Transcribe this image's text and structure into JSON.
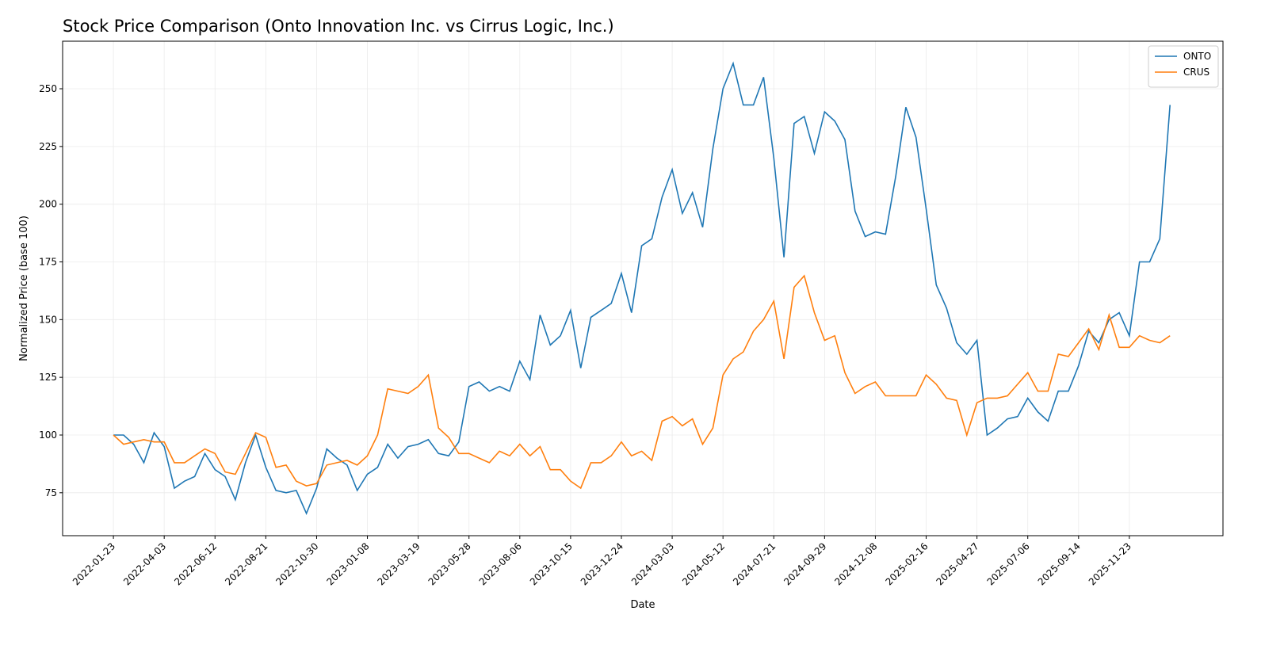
{
  "chart_data": {
    "type": "line",
    "title": "Stock Price Comparison (Onto Innovation Inc. vs Cirrus Logic, Inc.)",
    "x_label": "Date",
    "y_label": "Normalized Price (base 100)",
    "x": [
      "2022-01-23",
      "2022-02-06",
      "2022-02-20",
      "2022-03-06",
      "2022-03-20",
      "2022-04-03",
      "2022-04-17",
      "2022-05-01",
      "2022-05-15",
      "2022-05-29",
      "2022-06-12",
      "2022-06-26",
      "2022-07-10",
      "2022-07-24",
      "2022-08-07",
      "2022-08-21",
      "2022-09-04",
      "2022-09-18",
      "2022-10-02",
      "2022-10-16",
      "2022-10-30",
      "2022-11-13",
      "2022-11-27",
      "2022-12-11",
      "2022-12-25",
      "2023-01-08",
      "2023-01-22",
      "2023-02-05",
      "2023-02-19",
      "2023-03-05",
      "2023-03-19",
      "2023-04-02",
      "2023-04-16",
      "2023-04-30",
      "2023-05-14",
      "2023-05-28",
      "2023-06-11",
      "2023-06-25",
      "2023-07-09",
      "2023-07-23",
      "2023-08-06",
      "2023-08-20",
      "2023-09-03",
      "2023-09-17",
      "2023-10-01",
      "2023-10-15",
      "2023-10-29",
      "2023-11-12",
      "2023-11-26",
      "2023-12-10",
      "2023-12-24",
      "2024-01-07",
      "2024-01-21",
      "2024-02-04",
      "2024-02-18",
      "2024-03-03",
      "2024-03-17",
      "2024-03-31",
      "2024-04-14",
      "2024-04-28",
      "2024-05-12",
      "2024-05-26",
      "2024-06-09",
      "2024-06-23",
      "2024-07-07",
      "2024-07-21",
      "2024-08-04",
      "2024-08-18",
      "2024-09-01",
      "2024-09-15",
      "2024-09-29",
      "2024-10-13",
      "2024-10-27",
      "2024-11-10",
      "2024-11-24",
      "2024-12-08",
      "2024-12-22",
      "2025-01-05",
      "2025-01-19",
      "2025-02-02",
      "2025-02-16",
      "2025-03-02",
      "2025-03-16",
      "2025-03-30",
      "2025-04-13",
      "2025-04-27",
      "2025-05-11",
      "2025-05-25",
      "2025-06-08",
      "2025-06-22",
      "2025-07-06",
      "2025-07-20",
      "2025-08-03",
      "2025-08-17",
      "2025-08-31",
      "2025-09-14",
      "2025-09-28",
      "2025-10-12",
      "2025-10-26",
      "2025-11-09",
      "2025-11-23",
      "2025-12-07",
      "2025-12-21",
      "2026-01-04",
      "2026-01-18"
    ],
    "series": [
      {
        "name": "ONTO",
        "color": "#1f77b4",
        "values": [
          100,
          100,
          96,
          88,
          101,
          95,
          77,
          80,
          82,
          92,
          85,
          82,
          72,
          88,
          100,
          86,
          76,
          75,
          76,
          66,
          77,
          94,
          90,
          87,
          76,
          83,
          86,
          96,
          90,
          95,
          96,
          98,
          92,
          91,
          97,
          121,
          123,
          119,
          121,
          119,
          132,
          124,
          152,
          139,
          143,
          154,
          129,
          151,
          154,
          157,
          170,
          153,
          182,
          185,
          203,
          215,
          196,
          205,
          190,
          224,
          250,
          261,
          243,
          243,
          255,
          220,
          177,
          235,
          238,
          222,
          240,
          236,
          228,
          197,
          186,
          188,
          187,
          212,
          242,
          229,
          198,
          165,
          155,
          140,
          135,
          141,
          100,
          103,
          107,
          108,
          116,
          110,
          106,
          119,
          119,
          130,
          145,
          140,
          150,
          153,
          143,
          175,
          175,
          185,
          243
        ]
      },
      {
        "name": "CRUS",
        "color": "#ff7f0e",
        "values": [
          100,
          96,
          97,
          98,
          97,
          97,
          88,
          88,
          91,
          94,
          92,
          84,
          83,
          92,
          101,
          99,
          86,
          87,
          80,
          78,
          79,
          87,
          88,
          89,
          87,
          91,
          100,
          120,
          119,
          118,
          121,
          126,
          103,
          99,
          92,
          92,
          90,
          88,
          93,
          91,
          96,
          91,
          95,
          85,
          85,
          80,
          77,
          88,
          88,
          91,
          97,
          91,
          93,
          89,
          106,
          108,
          104,
          107,
          96,
          103,
          126,
          133,
          136,
          145,
          150,
          158,
          133,
          164,
          169,
          153,
          141,
          143,
          127,
          118,
          121,
          123,
          117,
          117,
          117,
          117,
          126,
          122,
          116,
          115,
          100,
          114,
          116,
          116,
          117,
          122,
          127,
          119,
          119,
          135,
          134,
          140,
          146,
          137,
          152,
          138,
          138,
          143,
          141,
          140,
          143
        ]
      }
    ],
    "xlim": [
      "2021-11-14",
      "2026-04-01"
    ],
    "xticks": [
      "2022-01-23",
      "2022-04-03",
      "2022-06-12",
      "2022-08-21",
      "2022-10-30",
      "2023-01-08",
      "2023-03-19",
      "2023-05-28",
      "2023-08-06",
      "2023-10-15",
      "2023-12-24",
      "2024-03-03",
      "2024-05-12",
      "2024-07-21",
      "2024-09-29",
      "2024-12-08",
      "2025-02-16",
      "2025-04-27",
      "2025-07-06",
      "2025-09-14",
      "2025-11-23"
    ],
    "ylim": [
      56.4,
      270.6
    ],
    "yticks": [
      75,
      100,
      125,
      150,
      175,
      200,
      225,
      250
    ],
    "grid": true,
    "legend": "upper right"
  }
}
